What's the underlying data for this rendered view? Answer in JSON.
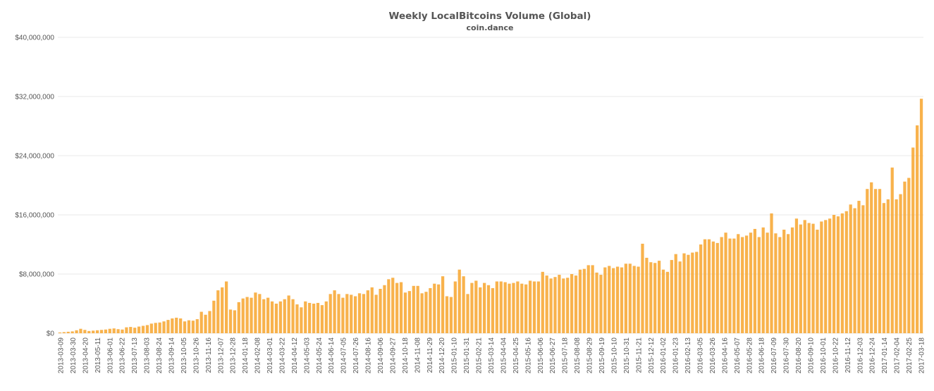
{
  "chart_data": {
    "type": "bar",
    "title": "Weekly LocalBitcoins Volume (Global)",
    "subtitle": "coin.dance",
    "xlabel": "",
    "ylabel": "",
    "ylim": [
      0,
      40000000
    ],
    "y_tick_labels": [
      "$0",
      "$8,000,000",
      "$16,000,000",
      "$24,000,000",
      "$32,000,000",
      "$40,000,000"
    ],
    "y_tick_values": [
      0,
      8000000,
      16000000,
      24000000,
      32000000,
      40000000
    ],
    "grid": true,
    "bar_color": "#f7a733",
    "label_dates": [
      "2013-03-09",
      "2013-03-30",
      "2013-04-20",
      "2013-05-11",
      "2013-06-01",
      "2013-06-22",
      "2013-07-13",
      "2013-08-03",
      "2013-08-24",
      "2013-09-14",
      "2013-10-05",
      "2013-10-26",
      "2013-11-16",
      "2013-12-07",
      "2013-12-28",
      "2014-01-18",
      "2014-02-08",
      "2014-03-01",
      "2014-03-22",
      "2014-04-12",
      "2014-05-03",
      "2014-05-24",
      "2014-06-14",
      "2014-07-05",
      "2014-07-26",
      "2014-08-16",
      "2014-09-06",
      "2014-09-27",
      "2014-10-18",
      "2014-11-08",
      "2014-11-29",
      "2014-12-20",
      "2015-01-10",
      "2015-01-31",
      "2015-02-21",
      "2015-03-14",
      "2015-04-04",
      "2015-04-25",
      "2015-05-16",
      "2015-06-06",
      "2015-06-27",
      "2015-07-18",
      "2015-08-08",
      "2015-08-29",
      "2015-09-19",
      "2015-10-10",
      "2015-10-31",
      "2015-11-21",
      "2015-12-12",
      "2016-01-02",
      "2016-01-23",
      "2016-02-13",
      "2016-03-05",
      "2016-03-26",
      "2016-04-16",
      "2016-05-07",
      "2016-05-28",
      "2016-06-18",
      "2016-07-09",
      "2016-07-30",
      "2016-08-20",
      "2016-09-10",
      "2016-10-01",
      "2016-10-22",
      "2016-11-12",
      "2016-12-03",
      "2016-12-24",
      "2017-01-14",
      "2017-02-04",
      "2017-02-25",
      "2017-03-18"
    ],
    "values": [
      100000,
      150000,
      200000,
      250000,
      400000,
      600000,
      450000,
      300000,
      350000,
      400000,
      450000,
      500000,
      600000,
      650000,
      550000,
      500000,
      800000,
      850000,
      750000,
      900000,
      1000000,
      1100000,
      1300000,
      1400000,
      1450000,
      1600000,
      1800000,
      2000000,
      2100000,
      2000000,
      1600000,
      1750000,
      1700000,
      1900000,
      2900000,
      2500000,
      3000000,
      4400000,
      5800000,
      6200000,
      7000000,
      3200000,
      3100000,
      4200000,
      4700000,
      4900000,
      4800000,
      5500000,
      5300000,
      4600000,
      4800000,
      4300000,
      4000000,
      4300000,
      4600000,
      5100000,
      4600000,
      3900000,
      3500000,
      4300000,
      4100000,
      4000000,
      4100000,
      3800000,
      4300000,
      5300000,
      5800000,
      5300000,
      4800000,
      5300000,
      5200000,
      5000000,
      5400000,
      5300000,
      5800000,
      6200000,
      5200000,
      6000000,
      6500000,
      7300000,
      7500000,
      6800000,
      6900000,
      5500000,
      5700000,
      6400000,
      6400000,
      5400000,
      5600000,
      6100000,
      6700000,
      6600000,
      7700000,
      5000000,
      4900000,
      7000000,
      8600000,
      7700000,
      5300000,
      6800000,
      7100000,
      6200000,
      6800000,
      6500000,
      6100000,
      7000000,
      7000000,
      6900000,
      6700000,
      6800000,
      7000000,
      6700000,
      6600000,
      7100000,
      7000000,
      7000000,
      8300000,
      7800000,
      7400000,
      7600000,
      7900000,
      7400000,
      7500000,
      8000000,
      7800000,
      8600000,
      8700000,
      9200000,
      9200000,
      8200000,
      7900000,
      8900000,
      9100000,
      8800000,
      9000000,
      8900000,
      9400000,
      9400000,
      9100000,
      9000000,
      12100000,
      10200000,
      9600000,
      9500000,
      9800000,
      8600000,
      8300000,
      9900000,
      10700000,
      9700000,
      10800000,
      10600000,
      10900000,
      11000000,
      12000000,
      12700000,
      12700000,
      12400000,
      12200000,
      13000000,
      13600000,
      12800000,
      12800000,
      13400000,
      13000000,
      13200000,
      13600000,
      14100000,
      13000000,
      14300000,
      13600000,
      16200000,
      13500000,
      13000000,
      14000000,
      13400000,
      14300000,
      15500000,
      14700000,
      15300000,
      14900000,
      14800000,
      14000000,
      15100000,
      15300000,
      15500000,
      16000000,
      15800000,
      16200000,
      16500000,
      17400000,
      16900000,
      17900000,
      17300000,
      19500000,
      20400000,
      19500000,
      19500000,
      17600000,
      18100000,
      22400000,
      18100000,
      18800000,
      20500000,
      21000000,
      25100000,
      28100000,
      31700000
    ]
  }
}
